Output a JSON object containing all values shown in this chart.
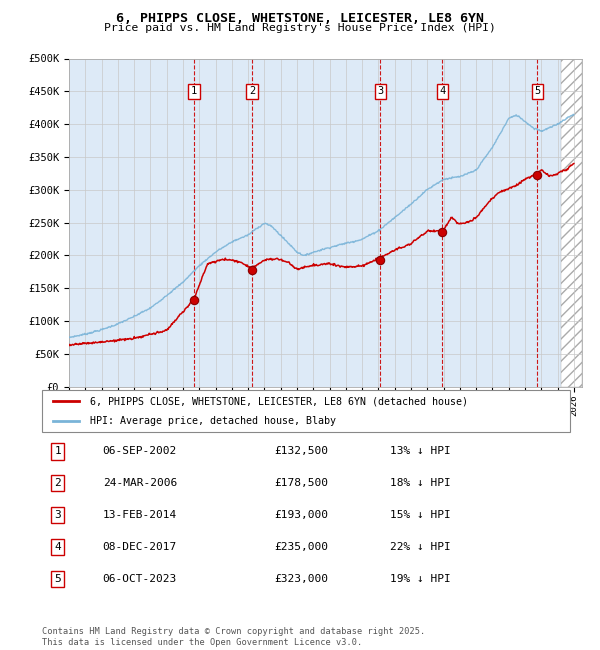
{
  "title_line1": "6, PHIPPS CLOSE, WHETSTONE, LEICESTER, LE8 6YN",
  "title_line2": "Price paid vs. HM Land Registry's House Price Index (HPI)",
  "ylim": [
    0,
    500000
  ],
  "yticks": [
    0,
    50000,
    100000,
    150000,
    200000,
    250000,
    300000,
    350000,
    400000,
    450000,
    500000
  ],
  "xlim_start": 1995.0,
  "xlim_end": 2026.5,
  "hpi_color": "#7ab4d8",
  "price_color": "#cc0000",
  "grid_color": "#c8c8c8",
  "background_color": "#ddeaf7",
  "legend_label_price": "6, PHIPPS CLOSE, WHETSTONE, LEICESTER, LE8 6YN (detached house)",
  "legend_label_hpi": "HPI: Average price, detached house, Blaby",
  "footnote": "Contains HM Land Registry data © Crown copyright and database right 2025.\nThis data is licensed under the Open Government Licence v3.0.",
  "sales": [
    {
      "num": 1,
      "date_x": 2002.68,
      "price": 132500
    },
    {
      "num": 2,
      "date_x": 2006.23,
      "price": 178500
    },
    {
      "num": 3,
      "date_x": 2014.12,
      "price": 193000
    },
    {
      "num": 4,
      "date_x": 2017.93,
      "price": 235000
    },
    {
      "num": 5,
      "date_x": 2023.76,
      "price": 323000
    }
  ],
  "table_rows": [
    {
      "num": 1,
      "date": "06-SEP-2002",
      "price": "£132,500",
      "pct": "13% ↓ HPI"
    },
    {
      "num": 2,
      "date": "24-MAR-2006",
      "price": "£178,500",
      "pct": "18% ↓ HPI"
    },
    {
      "num": 3,
      "date": "13-FEB-2014",
      "price": "£193,000",
      "pct": "15% ↓ HPI"
    },
    {
      "num": 4,
      "date": "08-DEC-2017",
      "price": "£235,000",
      "pct": "22% ↓ HPI"
    },
    {
      "num": 5,
      "date": "06-OCT-2023",
      "price": "£323,000",
      "pct": "19% ↓ HPI"
    }
  ],
  "hpi_knots_x": [
    1995,
    1996,
    1997,
    1998,
    1999,
    2000,
    2001,
    2002,
    2003,
    2004,
    2005,
    2006,
    2006.5,
    2007,
    2007.5,
    2008,
    2009,
    2009.5,
    2010,
    2011,
    2012,
    2013,
    2014,
    2015,
    2016,
    2017,
    2018,
    2019,
    2020,
    2021,
    2022,
    2022.5,
    2023,
    2023.5,
    2024,
    2024.5,
    2025,
    2025.5,
    2026
  ],
  "hpi_knots_y": [
    75000,
    80000,
    87000,
    96000,
    108000,
    120000,
    140000,
    160000,
    185000,
    205000,
    220000,
    230000,
    240000,
    248000,
    242000,
    230000,
    205000,
    200000,
    205000,
    212000,
    218000,
    225000,
    238000,
    258000,
    278000,
    300000,
    316000,
    320000,
    330000,
    365000,
    410000,
    415000,
    405000,
    395000,
    390000,
    395000,
    400000,
    408000,
    415000
  ],
  "price_knots_x": [
    1995,
    1997,
    1999,
    2001,
    2002.68,
    2003.5,
    2004.5,
    2005.5,
    2006.23,
    2007,
    2007.8,
    2008.5,
    2009,
    2009.5,
    2010,
    2011,
    2012,
    2013,
    2014.12,
    2015,
    2016,
    2017,
    2017.93,
    2018.5,
    2019,
    2019.5,
    2020,
    2020.5,
    2021,
    2021.5,
    2022,
    2022.5,
    2023,
    2023.76,
    2024,
    2024.5,
    2025,
    2025.5,
    2026
  ],
  "price_knots_y": [
    63000,
    68000,
    73000,
    85000,
    132500,
    185000,
    192000,
    188000,
    178500,
    190000,
    192000,
    185000,
    175000,
    178000,
    180000,
    183000,
    178000,
    180000,
    193000,
    205000,
    215000,
    235000,
    235000,
    255000,
    245000,
    248000,
    255000,
    270000,
    285000,
    295000,
    300000,
    305000,
    315000,
    323000,
    330000,
    320000,
    325000,
    330000,
    340000
  ]
}
